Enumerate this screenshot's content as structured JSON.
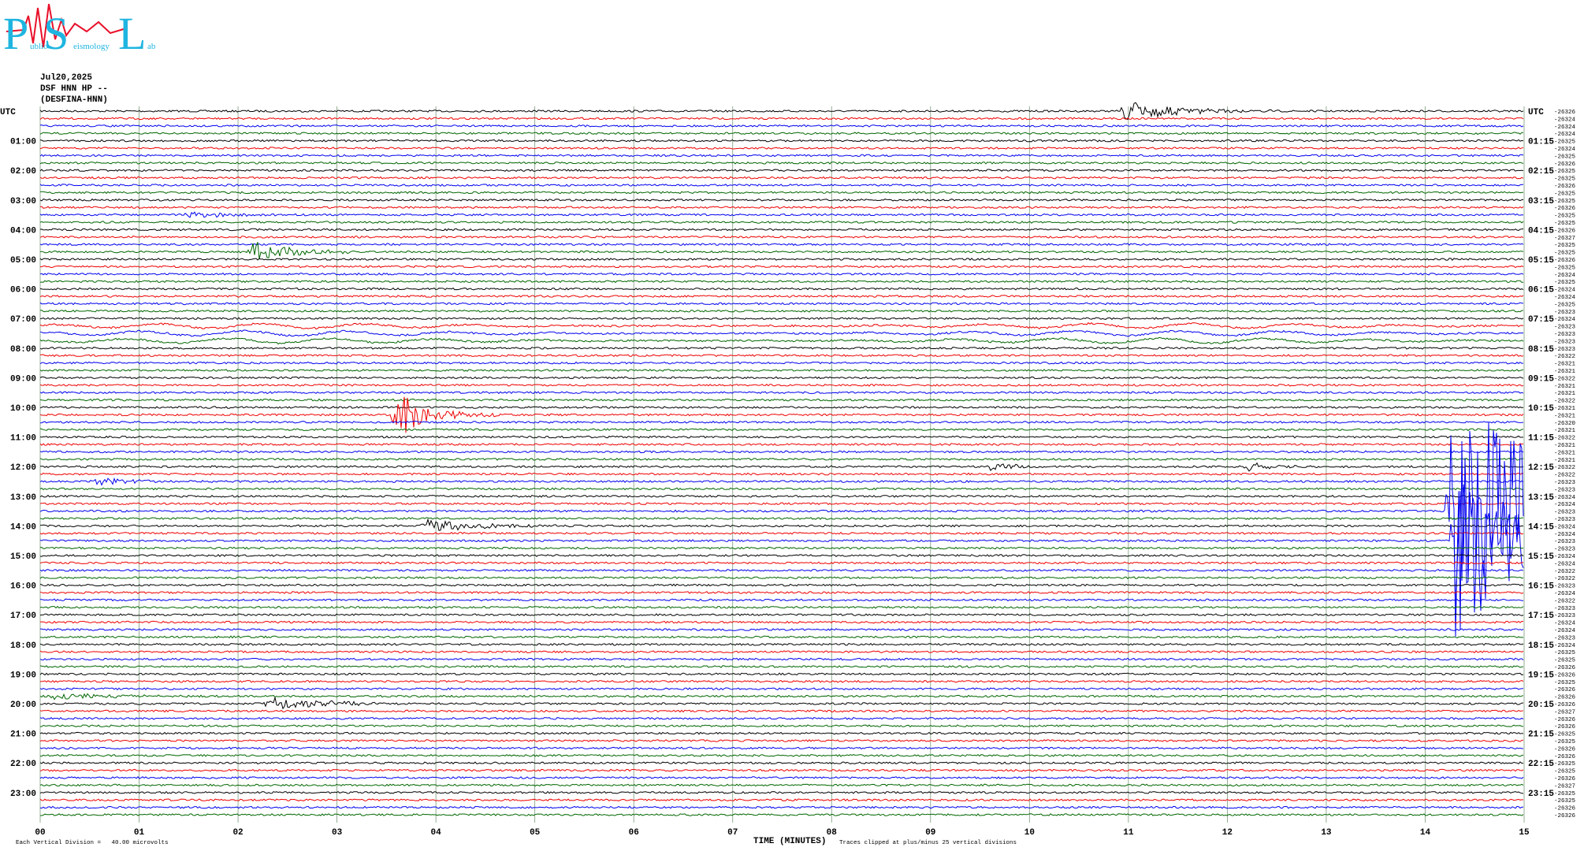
{
  "logo": {
    "big": [
      "P",
      "S",
      "L"
    ],
    "small": [
      "ublic",
      "eismology",
      "ab"
    ]
  },
  "header": {
    "date": "Jul20,2025",
    "station": "DSF HNN HP --",
    "name": "(DESFINA-HNN)"
  },
  "left_labels": [
    "UTC",
    "01:00",
    "02:00",
    "03:00",
    "04:00",
    "05:00",
    "06:00",
    "07:00",
    "08:00",
    "09:00",
    "10:00",
    "11:00",
    "12:00",
    "13:00",
    "14:00",
    "15:00",
    "16:00",
    "17:00",
    "18:00",
    "19:00",
    "20:00",
    "21:00",
    "22:00",
    "23:00"
  ],
  "right_labels": [
    "UTC",
    "01:15",
    "02:15",
    "03:15",
    "04:15",
    "05:15",
    "06:15",
    "07:15",
    "08:15",
    "09:15",
    "10:15",
    "11:15",
    "12:15",
    "13:15",
    "14:15",
    "15:15",
    "16:15",
    "17:15",
    "18:15",
    "19:15",
    "20:15",
    "21:15",
    "22:15",
    "23:15"
  ],
  "amplitude_labels": [
    -26326,
    -26324,
    -26324,
    -26324,
    -26325,
    -26324,
    -26325,
    -26326,
    -26325,
    -26325,
    -26326,
    -26325,
    -26325,
    -26326,
    -26325,
    -26325,
    -26326,
    -26327,
    -26325,
    -26325,
    -26326,
    -26325,
    -26324,
    -26325,
    -26324,
    -26324,
    -26325,
    -26323,
    -26324,
    -26323,
    -26323,
    -26323,
    -26323,
    -26322,
    -26321,
    -26321,
    -26322,
    -26321,
    -26321,
    -26322,
    -26321,
    -26321,
    -26320,
    -26321,
    -26322,
    -26321,
    -26321,
    -26321,
    -26322,
    -26322,
    -26323,
    -26323,
    -26324,
    -26324,
    -26323,
    -26323,
    -26324,
    -26324,
    -26323,
    -26323,
    -26324,
    -26324,
    -26322,
    -26322,
    -26323,
    -26324,
    -26322,
    -26323,
    -26323,
    -26324,
    -26324,
    -26323,
    -26324,
    -26325,
    -26325,
    -26326,
    -26326,
    -26325,
    -26326,
    -26326,
    -26326,
    -26327,
    -26326,
    -26326,
    -26325,
    -26325,
    -26326,
    -26326,
    -26325,
    -26325,
    -26326,
    -26327,
    -26325,
    -26325,
    -26326,
    -26326
  ],
  "x_axis": {
    "ticks": [
      "00",
      "01",
      "02",
      "03",
      "04",
      "05",
      "06",
      "07",
      "08",
      "09",
      "10",
      "11",
      "12",
      "13",
      "14",
      "15"
    ],
    "title": "TIME (MINUTES)"
  },
  "footer": {
    "scale_note": "Each Vertical Division =   40.00 microvolts",
    "clip_note": "Traces clipped at plus/minus 25 vertical divisions"
  }
}
